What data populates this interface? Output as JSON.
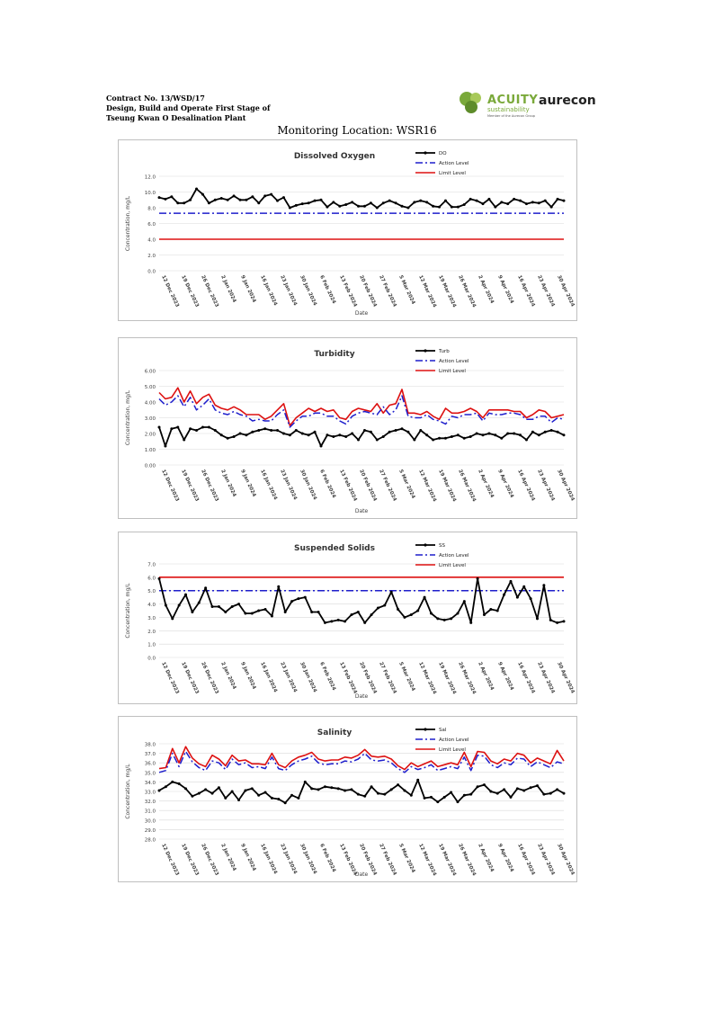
{
  "header": {
    "contract_line1": "Contract No. 13/WSD/17",
    "contract_line2": "Design, Build and Operate First Stage of",
    "contract_line3": "Tseung Kwan O Desalination Plant",
    "acuity_word": "ACUITY",
    "acuity_sub": "sustainability",
    "acuity_tiny": "Member of the Aurecon Group",
    "aurecon_word": "aurecon"
  },
  "monitoring_title": "Monitoring Location: WSR16",
  "x_tick_labels": [
    "12 Dec 2023",
    "19 Dec 2023",
    "26 Dec 2023",
    "2 Jan 2024",
    "9 Jan 2024",
    "16 Jan 2024",
    "23 Jan 2024",
    "30 Jan 2024",
    "6 Feb 2024",
    "13 Feb 2024",
    "20 Feb 2024",
    "27 Feb 2024",
    "5 Mar 2024",
    "12 Mar 2024",
    "19 Mar 2024",
    "26 Mar 2024",
    "2 Apr 2024",
    "9 Apr 2024",
    "16 Apr 2024",
    "23 Apr 2024",
    "30 Apr 2024"
  ],
  "colors": {
    "series": "#000000",
    "action": "#1f1fcc",
    "limit": "#dd1111",
    "grid": "#d9d9d9",
    "text": "#404040"
  },
  "chart_data": [
    {
      "type": "line",
      "title": "Dissolved Oxygen",
      "xlabel": "Date",
      "ylabel": "Concentration, mg/L",
      "ylim": [
        0,
        12
      ],
      "yticks": [
        "0.0",
        "2.0",
        "4.0",
        "6.0",
        "8.0",
        "10.0",
        "12.0"
      ],
      "legend": "top-right",
      "series": [
        {
          "name": "DO",
          "values": [
            9.3,
            9.1,
            9.4,
            8.6,
            8.6,
            9.0,
            10.4,
            9.7,
            8.6,
            9.0,
            9.2,
            9.0,
            9.5,
            9.0,
            9.0,
            9.4,
            8.6,
            9.5,
            9.7,
            8.9,
            9.3,
            8.0,
            8.3,
            8.5,
            8.6,
            8.9,
            9.0,
            8.1,
            8.7,
            8.2,
            8.4,
            8.7,
            8.2,
            8.2,
            8.6,
            8.0,
            8.6,
            8.9,
            8.6,
            8.2,
            8.0,
            8.7,
            8.9,
            8.7,
            8.2,
            8.1,
            8.9,
            8.1,
            8.1,
            8.4,
            9.1,
            8.9,
            8.5,
            9.1,
            8.1,
            8.7,
            8.5,
            9.1,
            8.9,
            8.5,
            8.7,
            8.6,
            8.9,
            8.1,
            9.1,
            8.9
          ]
        },
        {
          "name": "Action Level",
          "values": [
            7.3
          ]
        },
        {
          "name": "Limit Level",
          "values": [
            4.0
          ]
        }
      ]
    },
    {
      "type": "line",
      "title": "Turbidity",
      "xlabel": "Date",
      "ylabel": "Concentration, mg/L",
      "ylim": [
        0,
        6
      ],
      "yticks": [
        "0.00",
        "1.00",
        "2.00",
        "3.00",
        "4.00",
        "5.00",
        "6.00"
      ],
      "legend": "top-right",
      "series": [
        {
          "name": "Turb",
          "values": [
            2.4,
            1.2,
            2.3,
            2.4,
            1.6,
            2.3,
            2.2,
            2.4,
            2.4,
            2.2,
            1.9,
            1.7,
            1.8,
            2.0,
            1.9,
            2.1,
            2.2,
            2.3,
            2.2,
            2.2,
            2.0,
            1.9,
            2.2,
            2.0,
            1.9,
            2.1,
            1.2,
            1.9,
            1.8,
            1.9,
            1.8,
            2.0,
            1.6,
            2.2,
            2.1,
            1.6,
            1.8,
            2.1,
            2.2,
            2.3,
            2.1,
            1.6,
            2.2,
            1.9,
            1.6,
            1.7,
            1.7,
            1.8,
            1.9,
            1.7,
            1.8,
            2.0,
            1.9,
            2.0,
            1.9,
            1.7,
            2.0,
            2.0,
            1.9,
            1.6,
            2.1,
            1.9,
            2.1,
            2.2,
            2.1,
            1.9
          ]
        },
        {
          "name": "Action Level",
          "values": [
            4.2,
            3.8,
            4.0,
            4.4,
            3.7,
            4.3,
            3.5,
            3.8,
            4.2,
            3.5,
            3.3,
            3.2,
            3.4,
            3.2,
            3.1,
            2.8,
            2.9,
            2.8,
            2.8,
            3.2,
            3.5,
            2.4,
            2.8,
            3.1,
            3.1,
            3.3,
            3.3,
            3.1,
            3.1,
            2.8,
            2.6,
            3.1,
            3.3,
            3.4,
            3.3,
            3.2,
            3.7,
            3.2,
            3.5,
            4.4,
            3.1,
            3.0,
            3.0,
            3.2,
            2.9,
            2.8,
            2.6,
            3.1,
            3.0,
            3.2,
            3.2,
            3.3,
            2.8,
            3.3,
            3.2,
            3.2,
            3.3,
            3.3,
            3.2,
            2.9,
            2.9,
            3.1,
            3.1,
            2.7,
            3.0,
            2.9
          ]
        },
        {
          "name": "Limit Level",
          "values": [
            4.6,
            4.2,
            4.3,
            4.9,
            4.0,
            4.7,
            3.9,
            4.3,
            4.5,
            3.8,
            3.6,
            3.5,
            3.7,
            3.5,
            3.2,
            3.2,
            3.2,
            2.9,
            3.1,
            3.5,
            3.9,
            2.5,
            3.0,
            3.3,
            3.6,
            3.4,
            3.6,
            3.4,
            3.5,
            3.0,
            2.9,
            3.4,
            3.6,
            3.5,
            3.4,
            3.9,
            3.3,
            3.8,
            3.9,
            4.8,
            3.3,
            3.3,
            3.2,
            3.4,
            3.1,
            2.9,
            3.6,
            3.3,
            3.3,
            3.4,
            3.6,
            3.4,
            3.0,
            3.5,
            3.5,
            3.5,
            3.5,
            3.4,
            3.4,
            3.0,
            3.2,
            3.5,
            3.4,
            3.0,
            3.1,
            3.2
          ]
        }
      ]
    },
    {
      "type": "line",
      "title": "Suspended Solids",
      "xlabel": "Date",
      "ylabel": "Concentration, mg/L",
      "ylim": [
        0,
        7
      ],
      "yticks": [
        "0.0",
        "1.0",
        "2.0",
        "3.0",
        "4.0",
        "5.0",
        "6.0",
        "7.0"
      ],
      "legend": "top-right",
      "series": [
        {
          "name": "SS",
          "values": [
            5.9,
            3.9,
            2.9,
            3.9,
            4.7,
            3.4,
            4.1,
            5.2,
            3.8,
            3.8,
            3.4,
            3.8,
            4.0,
            3.3,
            3.3,
            3.5,
            3.6,
            3.1,
            5.3,
            3.4,
            4.2,
            4.4,
            4.5,
            3.4,
            3.4,
            2.6,
            2.7,
            2.8,
            2.7,
            3.2,
            3.4,
            2.6,
            3.2,
            3.7,
            3.9,
            4.9,
            3.6,
            3.0,
            3.2,
            3.5,
            4.5,
            3.3,
            2.9,
            2.8,
            2.9,
            3.3,
            4.2,
            2.6,
            5.9,
            3.2,
            3.6,
            3.5,
            4.7,
            5.7,
            4.5,
            5.3,
            4.4,
            2.9,
            5.4,
            2.8,
            2.6,
            2.7
          ]
        },
        {
          "name": "Action Level",
          "values": [
            5.0
          ]
        },
        {
          "name": "Limit Level",
          "values": [
            6.0
          ]
        }
      ]
    },
    {
      "type": "line",
      "title": "Salinity",
      "xlabel": "Date",
      "ylabel": "Concentration, mg/L",
      "ylim": [
        28,
        38
      ],
      "yticks": [
        "28.0",
        "29.0",
        "30.0",
        "31.0",
        "32.0",
        "33.0",
        "34.0",
        "35.0",
        "36.0",
        "37.0",
        "38.0"
      ],
      "legend": "top-right",
      "series": [
        {
          "name": "Sal",
          "values": [
            33.1,
            33.5,
            34.0,
            33.8,
            33.3,
            32.5,
            32.8,
            33.2,
            32.8,
            33.4,
            32.3,
            33.0,
            32.1,
            33.1,
            33.3,
            32.6,
            32.9,
            32.3,
            32.2,
            31.8,
            32.6,
            32.3,
            34.0,
            33.3,
            33.2,
            33.5,
            33.4,
            33.3,
            33.1,
            33.2,
            32.7,
            32.5,
            33.5,
            32.8,
            32.7,
            33.2,
            33.7,
            33.1,
            32.6,
            34.2,
            32.3,
            32.4,
            31.9,
            32.4,
            32.9,
            31.9,
            32.6,
            32.7,
            33.5,
            33.7,
            33.0,
            32.8,
            33.2,
            32.4,
            33.3,
            33.1,
            33.4,
            33.6,
            32.7,
            32.8,
            33.2,
            32.8
          ]
        },
        {
          "name": "Action Level",
          "values": [
            35.0,
            35.2,
            37.0,
            35.6,
            37.2,
            36.1,
            35.5,
            35.2,
            36.2,
            36.0,
            35.3,
            36.4,
            35.8,
            36.0,
            35.5,
            35.6,
            35.4,
            36.6,
            35.4,
            35.2,
            35.8,
            36.2,
            36.4,
            36.7,
            36.0,
            35.8,
            35.9,
            35.9,
            36.2,
            36.1,
            36.4,
            37.0,
            36.3,
            36.2,
            36.3,
            36.0,
            35.4,
            35.0,
            35.6,
            35.3,
            35.5,
            35.8,
            35.2,
            35.4,
            35.6,
            35.4,
            36.6,
            35.2,
            36.8,
            36.7,
            35.8,
            35.5,
            36.0,
            35.8,
            36.5,
            36.4,
            35.6,
            36.1,
            35.8,
            35.5,
            36.1,
            35.9
          ]
        },
        {
          "name": "Limit Level",
          "values": [
            35.4,
            35.5,
            37.5,
            36.0,
            37.7,
            36.5,
            35.9,
            35.6,
            36.8,
            36.4,
            35.7,
            36.8,
            36.2,
            36.3,
            35.9,
            35.9,
            35.8,
            37.0,
            35.8,
            35.5,
            36.2,
            36.6,
            36.8,
            37.1,
            36.4,
            36.2,
            36.3,
            36.3,
            36.6,
            36.5,
            36.8,
            37.4,
            36.7,
            36.6,
            36.7,
            36.4,
            35.7,
            35.3,
            36.0,
            35.6,
            35.9,
            36.2,
            35.6,
            35.8,
            36.0,
            35.8,
            37.1,
            35.6,
            37.2,
            37.1,
            36.2,
            35.9,
            36.4,
            36.2,
            37.0,
            36.8,
            36.0,
            36.5,
            36.2,
            35.9,
            37.3,
            36.2
          ]
        }
      ]
    }
  ]
}
